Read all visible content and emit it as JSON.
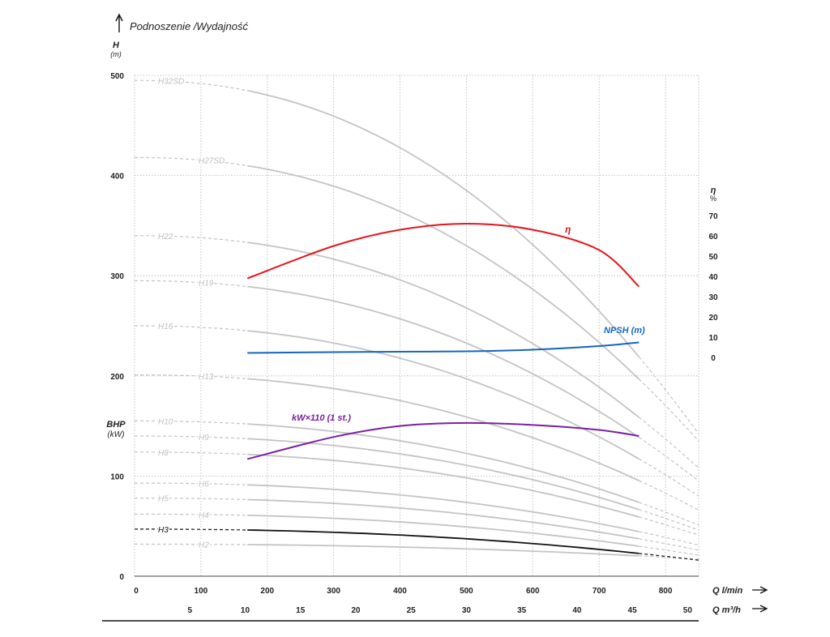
{
  "chart_data": {
    "type": "line",
    "title": "Podnoszenie /Wydajność",
    "y_left": {
      "label": "H",
      "unit": "(m)",
      "ticks": [
        0,
        100,
        200,
        300,
        400,
        500
      ],
      "range": [
        0,
        500
      ]
    },
    "bhp": {
      "label": "BHP",
      "unit": "(kW)"
    },
    "y_right": {
      "label": "η",
      "unit": "%",
      "ticks": [
        0,
        10,
        20,
        30,
        40,
        50,
        60,
        70
      ]
    },
    "x_lmin": {
      "label": "Q l/min",
      "ticks": [
        0,
        100,
        200,
        300,
        400,
        500,
        600,
        700,
        800
      ],
      "range": [
        0,
        850
      ]
    },
    "x_m3h": {
      "label": "Q m³/h",
      "ticks": [
        5,
        10,
        15,
        20,
        25,
        30,
        35,
        40,
        45,
        50
      ]
    },
    "grid": true,
    "head_curves": [
      {
        "name": "H2",
        "h0": 32,
        "h_end": 17,
        "highlight": false
      },
      {
        "name": "H3",
        "h0": 47,
        "h_end": 16,
        "highlight": true
      },
      {
        "name": "H4",
        "h0": 62,
        "h_end": 21,
        "highlight": false
      },
      {
        "name": "H5",
        "h0": 78,
        "h_end": 26,
        "highlight": false
      },
      {
        "name": "H6",
        "h0": 93,
        "h_end": 31,
        "highlight": false
      },
      {
        "name": "H8",
        "h0": 124,
        "h_end": 41,
        "highlight": false
      },
      {
        "name": "H9",
        "h0": 140,
        "h_end": 46,
        "highlight": false
      },
      {
        "name": "H10",
        "h0": 155,
        "h_end": 51,
        "highlight": false
      },
      {
        "name": "H13",
        "h0": 201,
        "h_end": 66,
        "highlight": false
      },
      {
        "name": "H16",
        "h0": 250,
        "h_end": 80,
        "highlight": false
      },
      {
        "name": "H19",
        "h0": 295,
        "h_end": 95,
        "highlight": false
      },
      {
        "name": "H22",
        "h0": 340,
        "h_end": 108,
        "highlight": false
      },
      {
        "name": "H27SD",
        "h0": 418,
        "h_end": 135,
        "highlight": false
      },
      {
        "name": "H32SD",
        "h0": 495,
        "h_end": 142,
        "highlight": false
      }
    ],
    "head_curve_solid_range_lmin": [
      170,
      760
    ],
    "efficiency": {
      "name": "η",
      "color": "#e8141c",
      "x_lmin": [
        170,
        300,
        400,
        500,
        600,
        700,
        760
      ],
      "eta_percent": [
        39,
        55,
        63,
        66,
        63,
        53,
        35
      ]
    },
    "npsh": {
      "name": "NPSH (m)",
      "color": "#1565c0",
      "x_lmin": [
        170,
        300,
        400,
        500,
        600,
        700,
        760
      ],
      "npsh_m": [
        2.2,
        2.6,
        2.8,
        3.0,
        3.8,
        5.6,
        7.4
      ]
    },
    "power": {
      "name": "kW×110 (1 st.)",
      "color": "#7b1fa2",
      "x_lmin": [
        170,
        300,
        400,
        500,
        600,
        700,
        760
      ],
      "h_equiv_m": [
        117,
        139,
        150,
        153,
        151,
        146,
        140
      ]
    }
  }
}
